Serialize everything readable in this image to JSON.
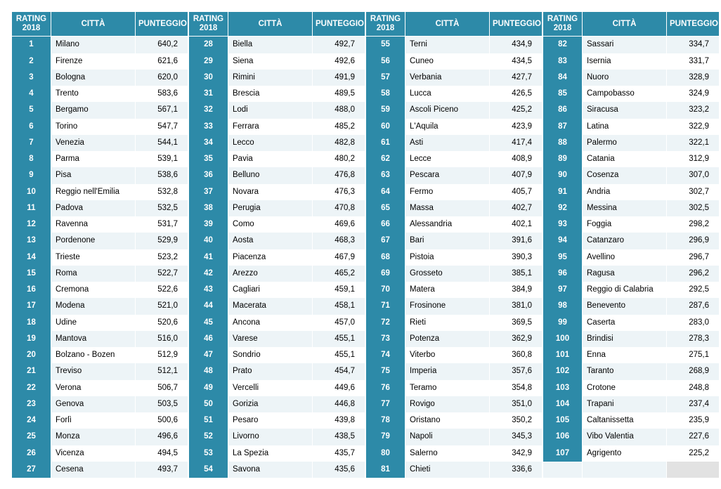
{
  "table": {
    "type": "table",
    "headers": {
      "rank": "RATING 2018",
      "city": "CITTÀ",
      "score": "PUNTEGGIO"
    },
    "colors": {
      "header_bg": "#2d8aa8",
      "header_fg": "#ffffff",
      "row_odd_bg": "#edf4f7",
      "row_even_bg": "#ffffff",
      "text": "#000000",
      "empty_fill": "#e2e2e2"
    },
    "font": {
      "family": "Arial",
      "size_pt": 9,
      "header_weight": "bold"
    },
    "blocks": 4,
    "rows_per_block": 27,
    "col_widths": {
      "rank": 56,
      "city": 120,
      "score": 75
    },
    "rows": [
      {
        "rank": "1",
        "city": "Milano",
        "score": "640,2"
      },
      {
        "rank": "2",
        "city": "Firenze",
        "score": "621,6"
      },
      {
        "rank": "3",
        "city": "Bologna",
        "score": "620,0"
      },
      {
        "rank": "4",
        "city": "Trento",
        "score": "583,6"
      },
      {
        "rank": "5",
        "city": "Bergamo",
        "score": "567,1"
      },
      {
        "rank": "6",
        "city": "Torino",
        "score": "547,7"
      },
      {
        "rank": "7",
        "city": "Venezia",
        "score": "544,1"
      },
      {
        "rank": "8",
        "city": "Parma",
        "score": "539,1"
      },
      {
        "rank": "9",
        "city": "Pisa",
        "score": "538,6"
      },
      {
        "rank": "10",
        "city": "Reggio nell'Emilia",
        "score": "532,8"
      },
      {
        "rank": "11",
        "city": "Padova",
        "score": "532,5"
      },
      {
        "rank": "12",
        "city": "Ravenna",
        "score": "531,7"
      },
      {
        "rank": "13",
        "city": "Pordenone",
        "score": "529,9"
      },
      {
        "rank": "14",
        "city": "Trieste",
        "score": "523,2"
      },
      {
        "rank": "15",
        "city": "Roma",
        "score": "522,7"
      },
      {
        "rank": "16",
        "city": "Cremona",
        "score": "522,6"
      },
      {
        "rank": "17",
        "city": "Modena",
        "score": "521,0"
      },
      {
        "rank": "18",
        "city": "Udine",
        "score": "520,6"
      },
      {
        "rank": "19",
        "city": "Mantova",
        "score": "516,0"
      },
      {
        "rank": "20",
        "city": "Bolzano - Bozen",
        "score": "512,9"
      },
      {
        "rank": "21",
        "city": "Treviso",
        "score": "512,1"
      },
      {
        "rank": "22",
        "city": "Verona",
        "score": "506,7"
      },
      {
        "rank": "23",
        "city": "Genova",
        "score": "503,5"
      },
      {
        "rank": "24",
        "city": "Forlì",
        "score": "500,6"
      },
      {
        "rank": "25",
        "city": "Monza",
        "score": "496,6"
      },
      {
        "rank": "26",
        "city": "Vicenza",
        "score": "494,5"
      },
      {
        "rank": "27",
        "city": "Cesena",
        "score": "493,7"
      },
      {
        "rank": "28",
        "city": "Biella",
        "score": "492,7"
      },
      {
        "rank": "29",
        "city": "Siena",
        "score": "492,6"
      },
      {
        "rank": "30",
        "city": "Rimini",
        "score": "491,9"
      },
      {
        "rank": "31",
        "city": "Brescia",
        "score": "489,5"
      },
      {
        "rank": "32",
        "city": "Lodi",
        "score": "488,0"
      },
      {
        "rank": "33",
        "city": "Ferrara",
        "score": "485,2"
      },
      {
        "rank": "34",
        "city": "Lecco",
        "score": "482,8"
      },
      {
        "rank": "35",
        "city": "Pavia",
        "score": "480,2"
      },
      {
        "rank": "36",
        "city": "Belluno",
        "score": "476,8"
      },
      {
        "rank": "37",
        "city": "Novara",
        "score": "476,3"
      },
      {
        "rank": "38",
        "city": "Perugia",
        "score": "470,8"
      },
      {
        "rank": "39",
        "city": "Como",
        "score": "469,6"
      },
      {
        "rank": "40",
        "city": "Aosta",
        "score": "468,3"
      },
      {
        "rank": "41",
        "city": "Piacenza",
        "score": "467,9"
      },
      {
        "rank": "42",
        "city": "Arezzo",
        "score": "465,2"
      },
      {
        "rank": "43",
        "city": "Cagliari",
        "score": "459,1"
      },
      {
        "rank": "44",
        "city": "Macerata",
        "score": "458,1"
      },
      {
        "rank": "45",
        "city": "Ancona",
        "score": "457,0"
      },
      {
        "rank": "46",
        "city": "Varese",
        "score": "455,1"
      },
      {
        "rank": "47",
        "city": "Sondrio",
        "score": "455,1"
      },
      {
        "rank": "48",
        "city": "Prato",
        "score": "454,7"
      },
      {
        "rank": "49",
        "city": "Vercelli",
        "score": "449,6"
      },
      {
        "rank": "50",
        "city": "Gorizia",
        "score": "446,8"
      },
      {
        "rank": "51",
        "city": "Pesaro",
        "score": "439,8"
      },
      {
        "rank": "52",
        "city": "Livorno",
        "score": "438,5"
      },
      {
        "rank": "53",
        "city": "La Spezia",
        "score": "435,7"
      },
      {
        "rank": "54",
        "city": "Savona",
        "score": "435,6"
      },
      {
        "rank": "55",
        "city": "Terni",
        "score": "434,9"
      },
      {
        "rank": "56",
        "city": "Cuneo",
        "score": "434,5"
      },
      {
        "rank": "57",
        "city": "Verbania",
        "score": "427,7"
      },
      {
        "rank": "58",
        "city": "Lucca",
        "score": "426,5"
      },
      {
        "rank": "59",
        "city": "Ascoli Piceno",
        "score": "425,2"
      },
      {
        "rank": "60",
        "city": "L'Aquila",
        "score": "423,9"
      },
      {
        "rank": "61",
        "city": "Asti",
        "score": "417,4"
      },
      {
        "rank": "62",
        "city": "Lecce",
        "score": "408,9"
      },
      {
        "rank": "63",
        "city": "Pescara",
        "score": "407,9"
      },
      {
        "rank": "64",
        "city": "Fermo",
        "score": "405,7"
      },
      {
        "rank": "65",
        "city": "Massa",
        "score": "402,7"
      },
      {
        "rank": "66",
        "city": "Alessandria",
        "score": "402,1"
      },
      {
        "rank": "67",
        "city": "Bari",
        "score": "391,6"
      },
      {
        "rank": "68",
        "city": "Pistoia",
        "score": "390,3"
      },
      {
        "rank": "69",
        "city": "Grosseto",
        "score": "385,1"
      },
      {
        "rank": "70",
        "city": "Matera",
        "score": "384,9"
      },
      {
        "rank": "71",
        "city": "Frosinone",
        "score": "381,0"
      },
      {
        "rank": "72",
        "city": "Rieti",
        "score": "369,5"
      },
      {
        "rank": "73",
        "city": "Potenza",
        "score": "362,9"
      },
      {
        "rank": "74",
        "city": "Viterbo",
        "score": "360,8"
      },
      {
        "rank": "75",
        "city": "Imperia",
        "score": "357,6"
      },
      {
        "rank": "76",
        "city": "Teramo",
        "score": "354,8"
      },
      {
        "rank": "77",
        "city": "Rovigo",
        "score": "351,0"
      },
      {
        "rank": "78",
        "city": "Oristano",
        "score": "350,2"
      },
      {
        "rank": "79",
        "city": "Napoli",
        "score": "345,3"
      },
      {
        "rank": "80",
        "city": "Salerno",
        "score": "342,9"
      },
      {
        "rank": "81",
        "city": "Chieti",
        "score": "336,6"
      },
      {
        "rank": "82",
        "city": "Sassari",
        "score": "334,7"
      },
      {
        "rank": "83",
        "city": "Isernia",
        "score": "331,7"
      },
      {
        "rank": "84",
        "city": "Nuoro",
        "score": "328,9"
      },
      {
        "rank": "85",
        "city": "Campobasso",
        "score": "324,9"
      },
      {
        "rank": "86",
        "city": "Siracusa",
        "score": "323,2"
      },
      {
        "rank": "87",
        "city": "Latina",
        "score": "322,9"
      },
      {
        "rank": "88",
        "city": "Palermo",
        "score": "322,1"
      },
      {
        "rank": "89",
        "city": "Catania",
        "score": "312,9"
      },
      {
        "rank": "90",
        "city": "Cosenza",
        "score": "307,0"
      },
      {
        "rank": "91",
        "city": "Andria",
        "score": "302,7"
      },
      {
        "rank": "92",
        "city": "Messina",
        "score": "302,5"
      },
      {
        "rank": "93",
        "city": "Foggia",
        "score": "298,2"
      },
      {
        "rank": "94",
        "city": "Catanzaro",
        "score": "296,9"
      },
      {
        "rank": "95",
        "city": "Avellino",
        "score": "296,7"
      },
      {
        "rank": "96",
        "city": "Ragusa",
        "score": "296,2"
      },
      {
        "rank": "97",
        "city": "Reggio di Calabria",
        "score": "292,5"
      },
      {
        "rank": "98",
        "city": "Benevento",
        "score": "287,6"
      },
      {
        "rank": "99",
        "city": "Caserta",
        "score": "283,0"
      },
      {
        "rank": "100",
        "city": "Brindisi",
        "score": "278,3"
      },
      {
        "rank": "101",
        "city": "Enna",
        "score": "275,1"
      },
      {
        "rank": "102",
        "city": "Taranto",
        "score": "268,9"
      },
      {
        "rank": "103",
        "city": "Crotone",
        "score": "248,8"
      },
      {
        "rank": "104",
        "city": "Trapani",
        "score": "237,4"
      },
      {
        "rank": "105",
        "city": "Caltanissetta",
        "score": "235,9"
      },
      {
        "rank": "106",
        "city": "Vibo Valentia",
        "score": "227,6"
      },
      {
        "rank": "107",
        "city": "Agrigento",
        "score": "225,2"
      }
    ]
  }
}
